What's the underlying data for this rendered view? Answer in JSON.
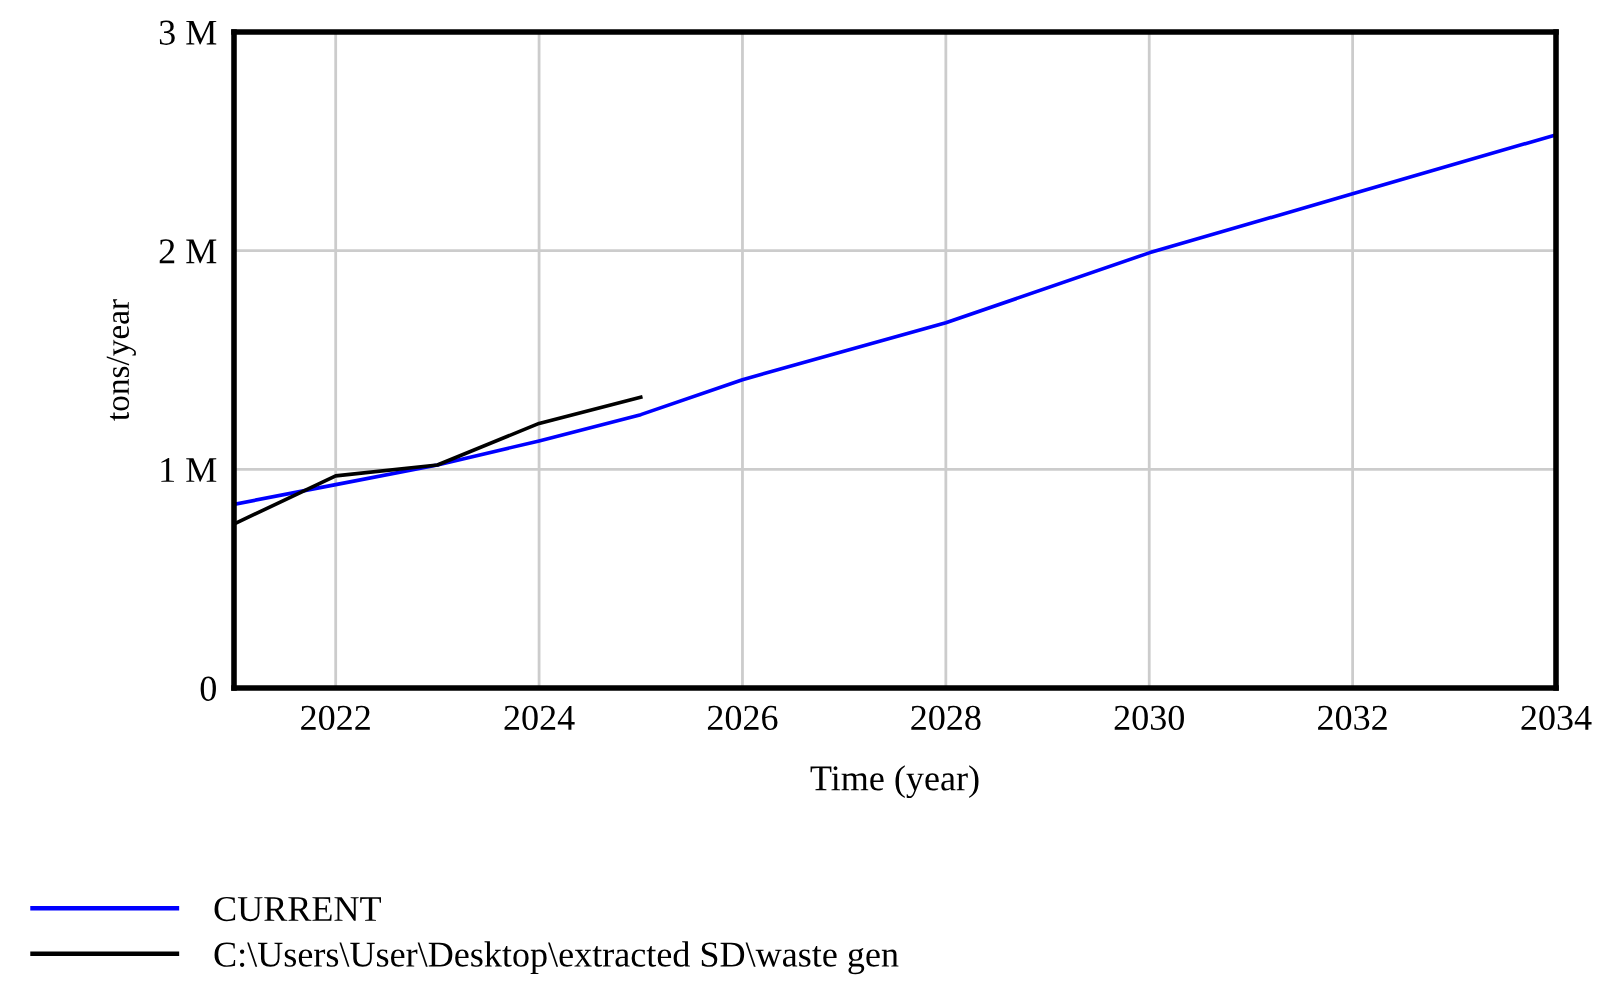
{
  "chart_data": {
    "type": "line",
    "xlabel": "Time (year)",
    "ylabel": "tons/year",
    "xlim": [
      2021,
      2034
    ],
    "xticks": [
      2022,
      2024,
      2026,
      2028,
      2030,
      2032,
      2034
    ],
    "ylim": [
      0,
      3000000
    ],
    "yticks": [
      0,
      {
        "value": 1000000,
        "label": "1 M"
      },
      {
        "value": 2000000,
        "label": "2 M"
      },
      {
        "value": 3000000,
        "label": "3 M"
      }
    ],
    "grid": true,
    "legend": "bottom",
    "marker": "none",
    "line_style": "solid",
    "series": [
      {
        "name": "CURRENT",
        "color": "#0000ff",
        "x": [
          2021,
          2022,
          2023,
          2024,
          2025,
          2026,
          2028,
          2030,
          2032,
          2034
        ],
        "values": [
          840000,
          930000,
          1020000,
          1130000,
          1250000,
          1410000,
          1670000,
          1990000,
          2260000,
          2530000
        ]
      },
      {
        "name": "C:\\Users\\User\\Desktop\\extracted SD\\waste gen",
        "color": "#000000",
        "x": [
          2021,
          2022,
          2023,
          2024,
          2025
        ],
        "values": [
          750000,
          970000,
          1020000,
          1210000,
          1330000
        ]
      }
    ]
  }
}
